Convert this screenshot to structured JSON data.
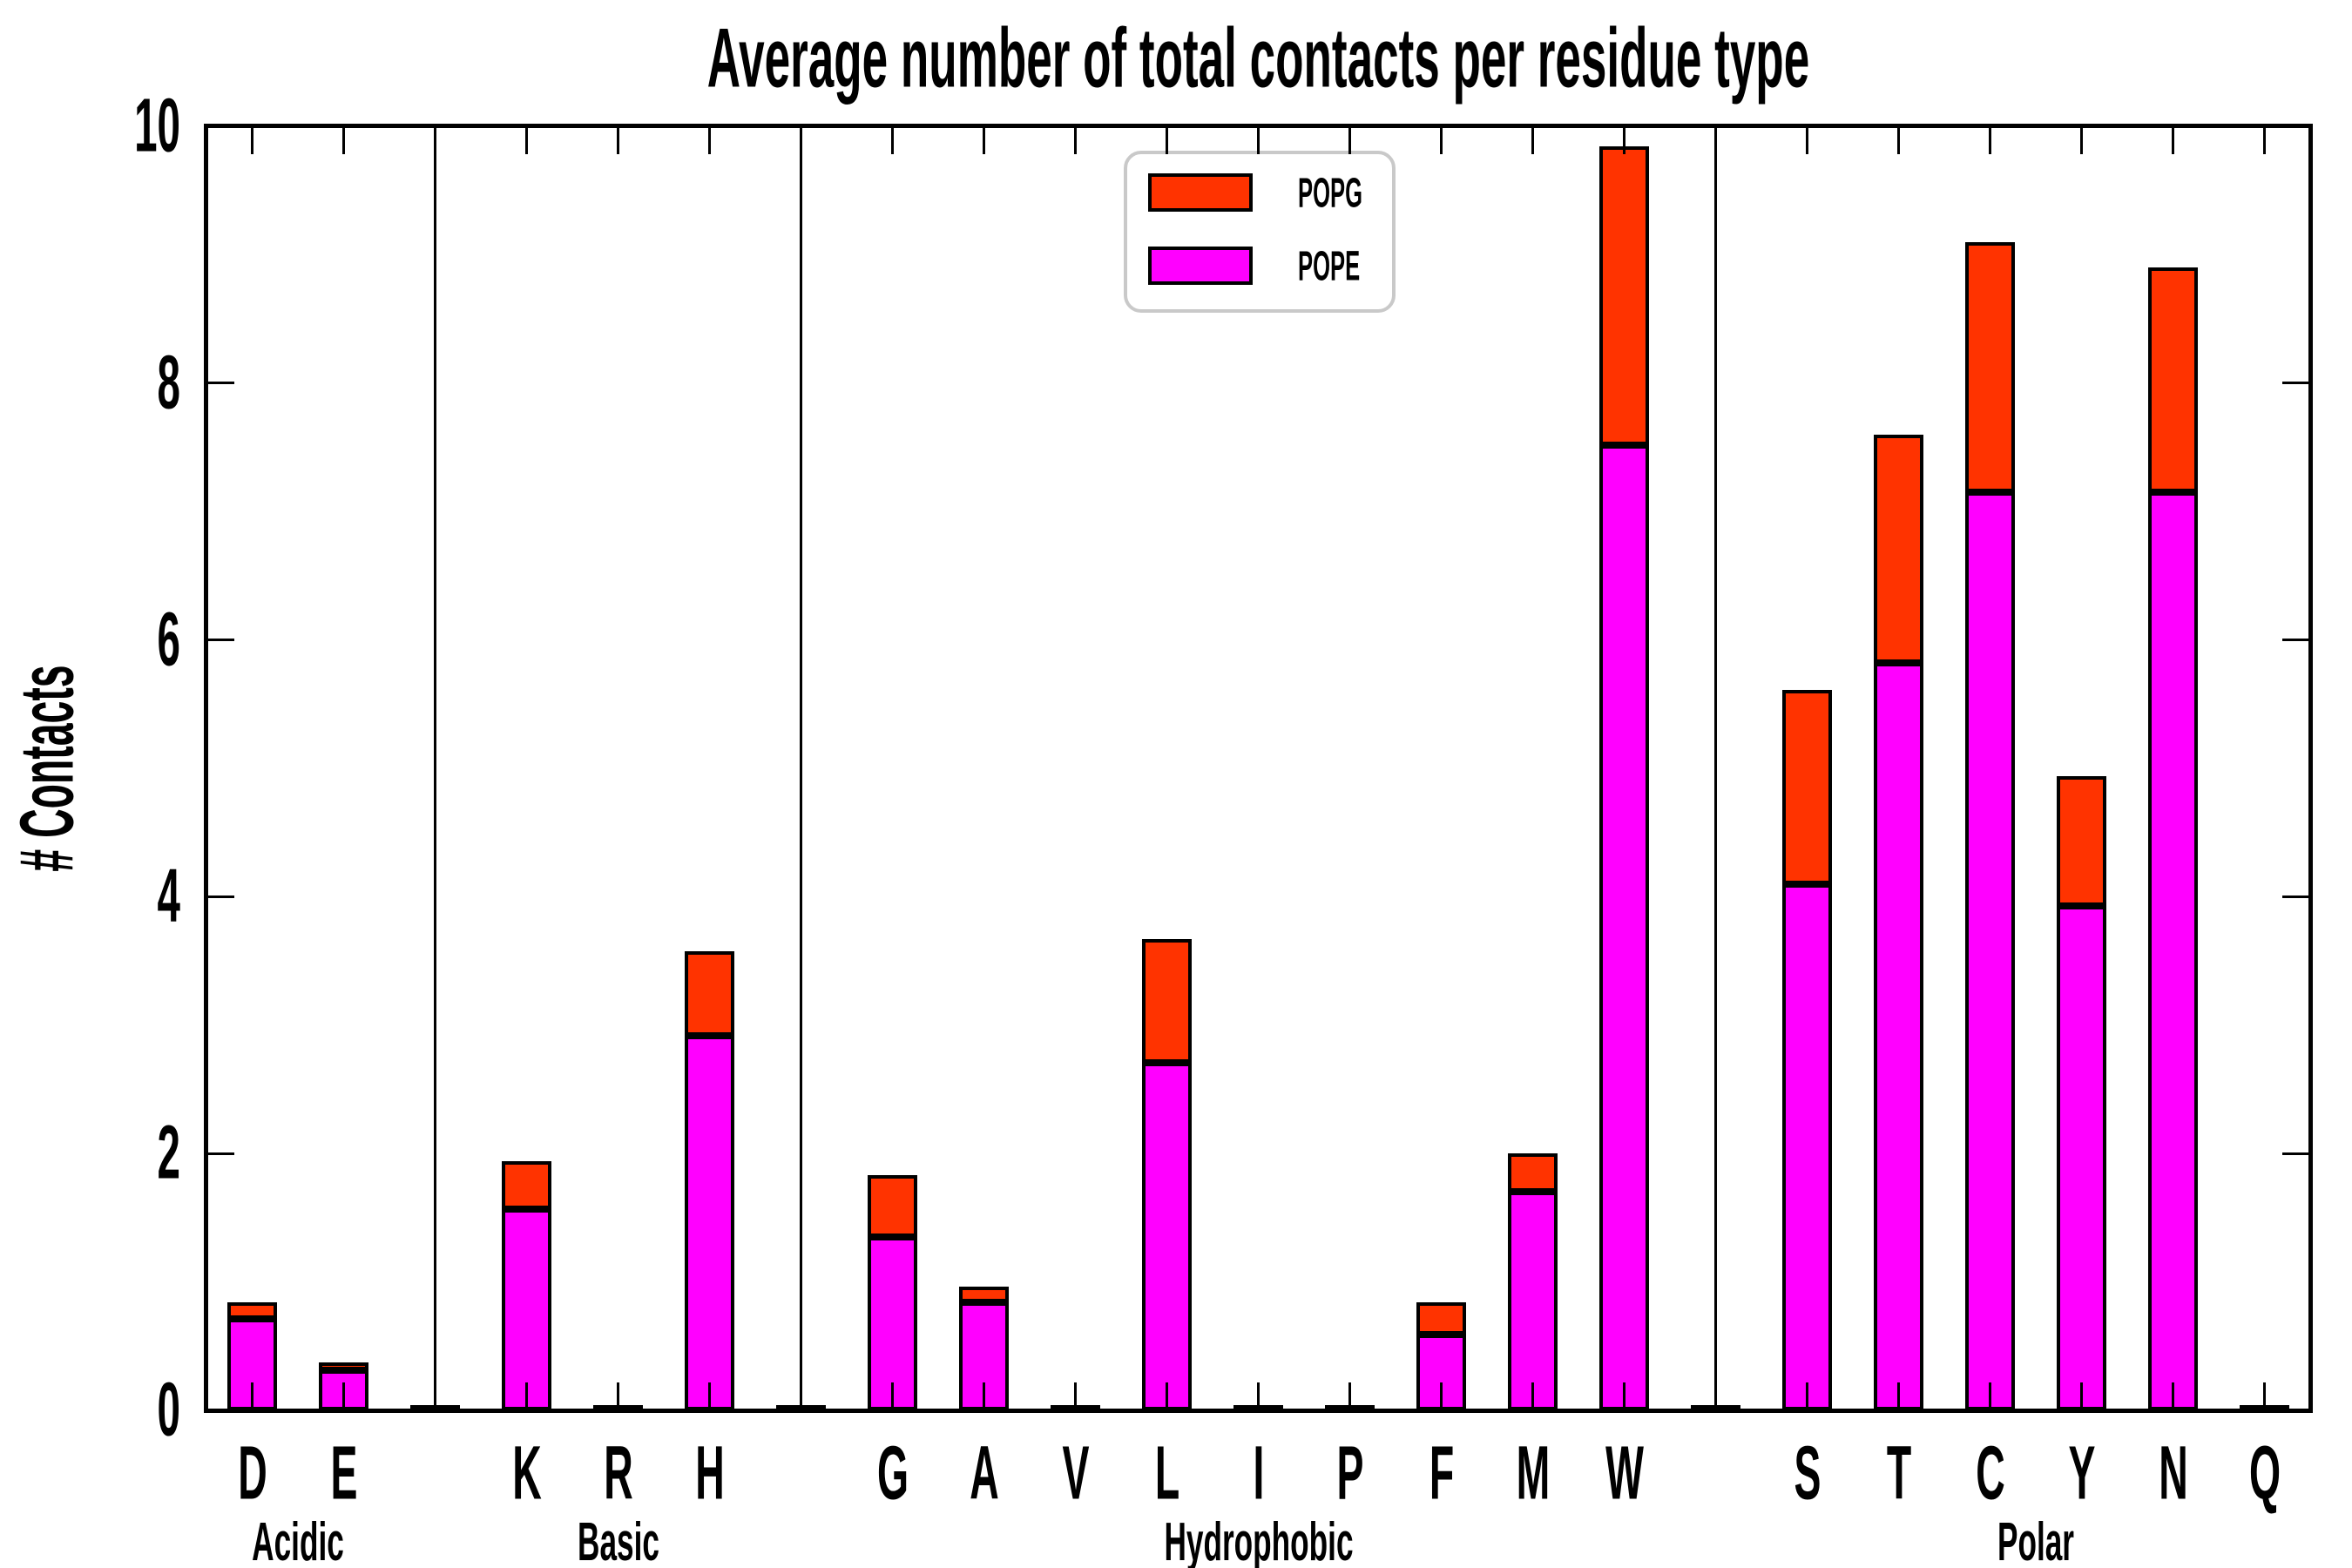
{
  "chart_data": {
    "type": "bar",
    "stacked": true,
    "title": "Average number of total contacts per residue type",
    "ylabel": "# Contacts",
    "xlabel": "",
    "ylim": [
      0,
      10
    ],
    "yticks": [
      0,
      2,
      4,
      6,
      8,
      10
    ],
    "grid": false,
    "legend": {
      "position": "upper center",
      "entries": [
        {
          "name": "POPG",
          "color": "#ff3300"
        },
        {
          "name": "POPE",
          "color": "#ff00ff"
        }
      ]
    },
    "categories": [
      "D",
      "E",
      "",
      "K",
      "R",
      "H",
      "",
      "G",
      "A",
      "V",
      "L",
      "I",
      "P",
      "F",
      "M",
      "W",
      "",
      "S",
      "T",
      "C",
      "Y",
      "N",
      "Q"
    ],
    "groups": [
      {
        "label": "Acidic",
        "from": "D",
        "to": "E"
      },
      {
        "label": "Basic",
        "from": "K",
        "to": "H"
      },
      {
        "label": "Hydrophobic",
        "from": "G",
        "to": "W"
      },
      {
        "label": "Polar",
        "from": "S",
        "to": "Q"
      }
    ],
    "series": [
      {
        "name": "POPE",
        "color": "#ff00ff",
        "values": [
          0.71,
          0.31,
          0.01,
          1.57,
          0.01,
          2.92,
          0.01,
          1.35,
          0.84,
          0.01,
          2.71,
          0.01,
          0.01,
          0.59,
          1.7,
          7.52,
          0.01,
          4.1,
          5.82,
          7.15,
          3.93,
          7.15,
          0.01
        ]
      },
      {
        "name": "POPG",
        "color": "#ff3300",
        "values": [
          0.13,
          0.06,
          0.01,
          0.37,
          0.01,
          0.66,
          0.01,
          0.48,
          0.12,
          0.01,
          0.96,
          0.01,
          0.01,
          0.25,
          0.3,
          2.33,
          0.01,
          1.51,
          1.78,
          1.95,
          1.01,
          1.75,
          0.01
        ]
      }
    ]
  }
}
